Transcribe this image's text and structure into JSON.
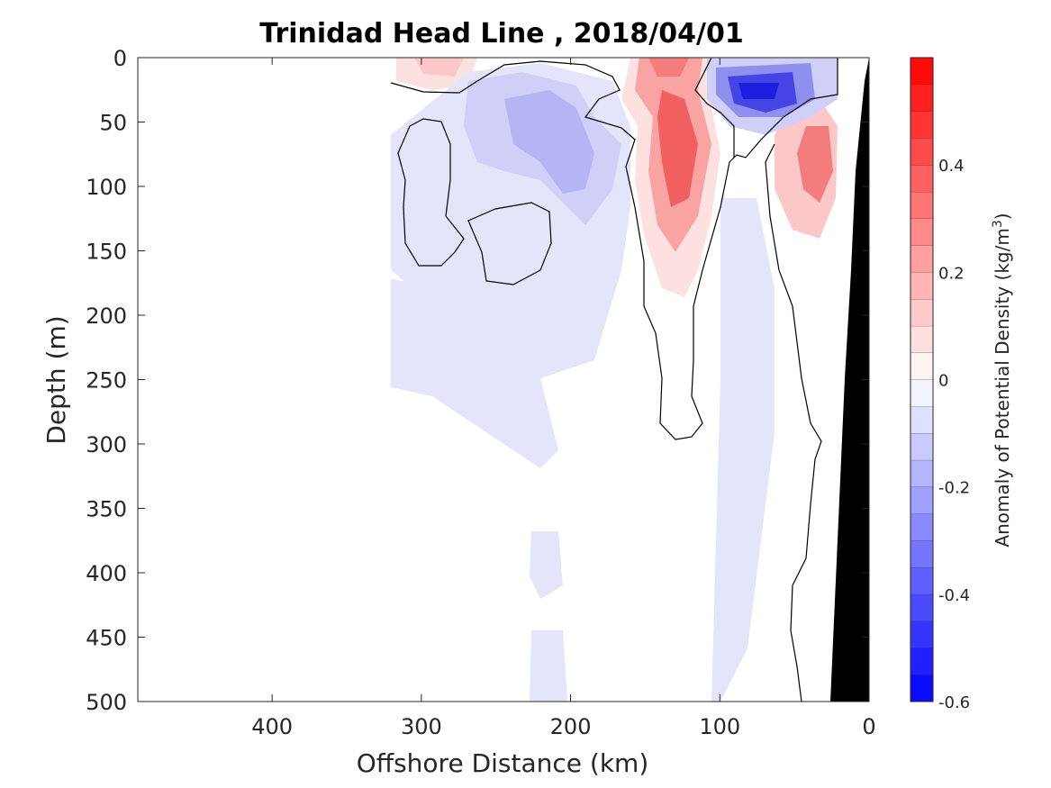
{
  "chart_data": {
    "type": "heatmap",
    "title": "Trinidad Head Line , 2018/04/01",
    "xlabel": "Offshore Distance (km)",
    "ylabel": "Depth (m)",
    "xlim": [
      490,
      0
    ],
    "ylim": [
      0,
      500
    ],
    "x_reversed": true,
    "y_reversed": true,
    "x_ticks": [
      "400",
      "300",
      "200",
      "100",
      "0"
    ],
    "x_tick_values": [
      400,
      300,
      200,
      100,
      0
    ],
    "y_ticks": [
      "0",
      "50",
      "100",
      "150",
      "200",
      "250",
      "300",
      "350",
      "400",
      "450",
      "500"
    ],
    "y_tick_values": [
      0,
      50,
      100,
      150,
      200,
      250,
      300,
      350,
      400,
      450,
      500
    ],
    "colorbar": {
      "label_prefix": "Anomaly of Potential Density (kg/m",
      "label_exp": "3",
      "label_suffix": ")",
      "range": [
        -0.6,
        0.6
      ],
      "step": 0.05,
      "ticks": [
        "0.4",
        "0.2",
        "0",
        "-0.2",
        "-0.4",
        "-0.6"
      ],
      "tick_values": [
        0.4,
        0.2,
        0,
        -0.2,
        -0.4,
        -0.6
      ]
    },
    "data_extent_x_km": 320,
    "contour_level": 0,
    "features": [
      {
        "kind": "anomaly",
        "x": 125,
        "y": 70,
        "value": 0.4
      },
      {
        "kind": "anomaly",
        "x": 135,
        "y": 10,
        "value": 0.35
      },
      {
        "kind": "anomaly",
        "x": 35,
        "y": 75,
        "value": 0.35
      },
      {
        "kind": "anomaly",
        "x": 235,
        "y": 140,
        "value": 0.15
      },
      {
        "kind": "anomaly",
        "x": 295,
        "y": 10,
        "value": 0.15
      },
      {
        "kind": "anomaly",
        "x": 75,
        "y": 28,
        "value": -0.5
      },
      {
        "kind": "anomaly",
        "x": 230,
        "y": 40,
        "value": -0.2
      },
      {
        "kind": "anomaly",
        "x": 190,
        "y": 90,
        "value": -0.2
      },
      {
        "kind": "anomaly",
        "x": 80,
        "y": 300,
        "value": -0.05
      }
    ],
    "bathymetry_shade": "#000000",
    "positive_color": "#ff0000",
    "negative_color": "#0000ff"
  }
}
